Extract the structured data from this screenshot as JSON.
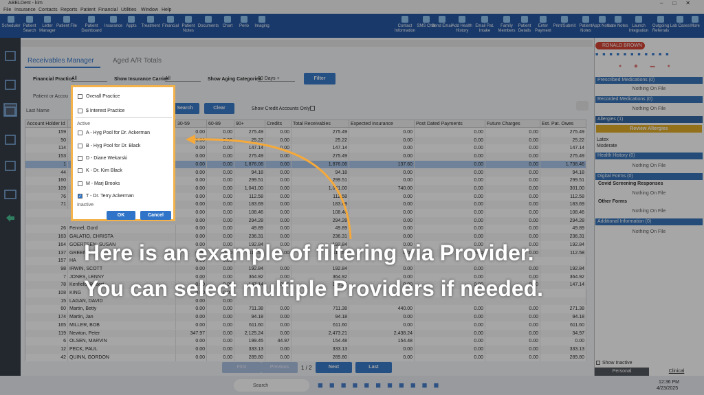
{
  "window": {
    "title": "ABELDent - kim",
    "menu": [
      "File",
      "Insurance",
      "Contacts",
      "Reports",
      "Patient",
      "Financial",
      "Utilities",
      "Window",
      "Help"
    ]
  },
  "toolbar": {
    "left": [
      "Scheduler",
      "Patient Search",
      "Letter Manager",
      "Patient File",
      "Patient Dashboard",
      "Insurance",
      "Appts",
      "Treatment",
      "Financial",
      "Patient Notes",
      "Documents",
      "Chart",
      "Perio",
      "Imaging"
    ],
    "right": [
      "Contact Information",
      "SMS Chat",
      "Send Email",
      "Add Health History",
      "Email Pat. Intake",
      "Family Members",
      "Patient Details",
      "Enter Payment",
      "Print/Submit",
      "Patient Notes",
      "Appt Notes",
      "Late Notes",
      "Launch Integration",
      "Outgoing Referrals",
      "Lab Cases",
      "More"
    ]
  },
  "tabs": [
    "Receivables Manager",
    "Aged A/R Totals"
  ],
  "filters": {
    "financial_practice_label": "Financial Practice",
    "financial_practice": "All",
    "carrier_label": "Show Insurance Carrier",
    "carrier": "All",
    "aging_label": "Show Aging Categories",
    "aging": "90 Days +",
    "filter_button": "Filter"
  },
  "search": {
    "label": "Patient or Accou",
    "last_name": "Last Name",
    "search_button": "Search",
    "clear_button": "Clear",
    "credit_only": "Show Credit Accounts Only"
  },
  "table": {
    "columns": [
      "Account Holder Id",
      null,
      "30-59",
      "60-89",
      "90+",
      "Credits",
      "Total Receivables",
      "Expected Insurance",
      "Post Dated Payments",
      "Future Charges",
      "Est. Pat. Owes"
    ],
    "rows": [
      [
        159,
        null,
        "0.00",
        "0.00",
        "275.49",
        "0.00",
        "275.49",
        "0.00",
        "0.00",
        "0.00",
        "275.49"
      ],
      [
        50,
        null,
        "0.00",
        "0.00",
        "25.22",
        "0.00",
        "25.22",
        "0.00",
        "0.00",
        "0.00",
        "25.22"
      ],
      [
        114,
        null,
        "0.00",
        "0.00",
        "147.14",
        "0.00",
        "147.14",
        "0.00",
        "0.00",
        "0.00",
        "147.14"
      ],
      [
        153,
        null,
        "0.00",
        "0.00",
        "275.49",
        "0.00",
        "275.49",
        "0.00",
        "0.00",
        "0.00",
        "275.49"
      ],
      [
        1,
        null,
        "0.00",
        "0.00",
        "1,876.06",
        "0.00",
        "1,876.06",
        "137.60",
        "0.00",
        "0.00",
        "1,738.46"
      ],
      [
        44,
        null,
        "0.00",
        "0.00",
        "94.18",
        "0.00",
        "94.18",
        "0.00",
        "0.00",
        "0.00",
        "94.18"
      ],
      [
        160,
        null,
        "0.00",
        "0.00",
        "299.51",
        "0.00",
        "299.51",
        "0.00",
        "0.00",
        "0.00",
        "299.51"
      ],
      [
        109,
        null,
        "0.00",
        "0.00",
        "1,041.00",
        "0.00",
        "1,041.00",
        "740.00",
        "0.00",
        "0.00",
        "301.00"
      ],
      [
        76,
        null,
        "0.00",
        "0.00",
        "112.58",
        "0.00",
        "112.58",
        "0.00",
        "0.00",
        "0.00",
        "112.58"
      ],
      [
        71,
        null,
        "0.00",
        "0.00",
        "183.69",
        "0.00",
        "183.69",
        "0.00",
        "0.00",
        "0.00",
        "183.69"
      ],
      [
        null,
        null,
        "0.00",
        "0.00",
        "108.46",
        "0.00",
        "108.46",
        "0.00",
        "0.00",
        "0.00",
        "108.46"
      ],
      [
        null,
        null,
        "0.00",
        "0.00",
        "294.28",
        "0.00",
        "294.28",
        "0.00",
        "0.00",
        "0.00",
        "294.28"
      ],
      [
        26,
        "Fennel, Gord",
        "0.00",
        "0.00",
        "49.89",
        "0.00",
        "49.89",
        "0.00",
        "0.00",
        "0.00",
        "49.89"
      ],
      [
        163,
        "GALATIO, CHRISTA",
        "0.00",
        "0.00",
        "236.31",
        "0.00",
        "236.31",
        "0.00",
        "0.00",
        "0.00",
        "236.31"
      ],
      [
        164,
        "GOERTSEN, SUSAN",
        "0.00",
        "0.00",
        "192.84",
        "0.00",
        "192.84",
        "0.00",
        "0.00",
        "0.00",
        "192.84"
      ],
      [
        137,
        "GREEN, JA",
        "0.00",
        "0.00",
        "112.58",
        "0.00",
        "112.58",
        "0.00",
        "0.00",
        "0.00",
        "112.58"
      ],
      [
        157,
        "HA",
        "0.00",
        "0.00",
        null,
        null,
        null,
        null,
        null,
        null,
        null
      ],
      [
        98,
        "IRWIN, SCOTT",
        "0.00",
        "0.00",
        "192.84",
        "0.00",
        "192.84",
        "0.00",
        "0.00",
        "0.00",
        "192.84"
      ],
      [
        7,
        "JONES, LENNY",
        "0.00",
        "0.00",
        "364.92",
        "0.00",
        "364.92",
        "0.00",
        "0.00",
        "0.00",
        "364.92"
      ],
      [
        78,
        "Kenfield, Robert",
        "0.00",
        "0.00",
        "147.14",
        "0.00",
        "147.14",
        "0.00",
        "0.00",
        "0.00",
        "147.14"
      ],
      [
        108,
        "KING",
        "0.00",
        "0.00",
        null,
        null,
        null,
        null,
        null,
        null,
        null
      ],
      [
        15,
        "LAGAN, DAVID",
        "0.00",
        "0.00",
        null,
        null,
        null,
        null,
        null,
        null,
        null
      ],
      [
        60,
        "Martin, Betty",
        "0.00",
        "0.00",
        "711.38",
        "0.00",
        "711.38",
        "440.00",
        "0.00",
        "0.00",
        "271.38"
      ],
      [
        174,
        "Martin, Jan",
        "0.00",
        "0.00",
        "94.18",
        "0.00",
        "94.18",
        "0.00",
        "0.00",
        "0.00",
        "94.18"
      ],
      [
        165,
        "MILLER, BOB",
        "0.00",
        "0.00",
        "611.60",
        "0.00",
        "611.60",
        "0.00",
        "0.00",
        "0.00",
        "611.60"
      ],
      [
        119,
        "Newton, Peter",
        "347.97",
        "0.00",
        "2,125.24",
        "0.00",
        "2,473.21",
        "2,438.24",
        "0.00",
        "0.00",
        "34.97"
      ],
      [
        6,
        "OLSEN, MARVIN",
        "0.00",
        "0.00",
        "199.45",
        "44.97",
        "154.48",
        "154.48",
        "0.00",
        "0.00",
        "0.00"
      ],
      [
        12,
        "PECK, PAUL",
        "0.00",
        "0.00",
        "333.13",
        "0.00",
        "333.13",
        "0.00",
        "0.00",
        "0.00",
        "333.13"
      ],
      [
        42,
        "QUINN, GORDON",
        "0.00",
        "0.00",
        "289.80",
        "0.00",
        "289.80",
        "0.00",
        "0.00",
        "0.00",
        "289.80"
      ]
    ]
  },
  "pager": {
    "first": "First",
    "previous": "Previous",
    "page": "1 / 2",
    "next": "Next",
    "last": "Last"
  },
  "popup": {
    "items": [
      {
        "label": "Overall Practice",
        "checked": false
      },
      {
        "label": "$ Interest Practice",
        "checked": false
      },
      {
        "label": "A - Hyg Pool for Dr. Ackerman",
        "checked": false
      },
      {
        "label": "B - Hyg Pool for Dr. Black",
        "checked": false
      },
      {
        "label": "D - Diane Wekarski",
        "checked": false
      },
      {
        "label": "K - Dr. Kim Black",
        "checked": false
      },
      {
        "label": "M - Marj Brooks",
        "checked": false
      },
      {
        "label": "T - Dr. Terry Ackerman",
        "checked": true
      }
    ],
    "active": "Active",
    "inactive": "Inactive",
    "ok": "OK",
    "cancel": "Cancel"
  },
  "caption": [
    "Here is an example of filtering via Provider.",
    "You can select multiple Providers if needed."
  ],
  "right_panel": {
    "patient": "RONALD BROWN",
    "prescribed": "Prescribed Medications (0)",
    "recorded": "Recorded Medications (0)",
    "allergies": "Allergies (1)",
    "review_allergies": "Review Allergies",
    "allergy": "Latex",
    "severity": "Moderate",
    "health_history": "Health History (0)",
    "digital_forms": "Digital Forms (0)",
    "covid": "Covid Screening Responses",
    "other_forms": "Other Forms",
    "additional": "Additional Information (0)",
    "nothing": "Nothing On File",
    "show_inactive": "Show Inactive",
    "personal": "Personal",
    "clinical": "Clinical"
  },
  "taskbar": {
    "search": "Search",
    "time": "12:36 PM",
    "date": "4/23/2025"
  }
}
